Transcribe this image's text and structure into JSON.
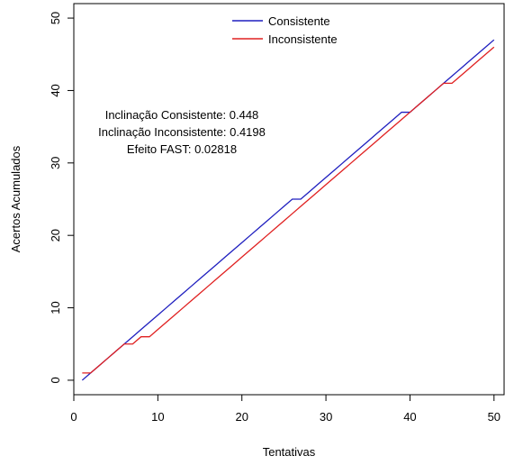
{
  "chart_data": {
    "type": "line",
    "xlabel": "Tentativas",
    "ylabel": "Acertos Acumulados",
    "xlim": [
      0,
      51.2
    ],
    "ylim": [
      -2,
      52
    ],
    "xticks": [
      0,
      10,
      20,
      30,
      40,
      50
    ],
    "yticks": [
      0,
      10,
      20,
      30,
      40,
      50
    ],
    "grid": false,
    "legend_position": "top-center",
    "series": [
      {
        "name": "Consistente",
        "color": "#1f1fbf",
        "x": [
          1,
          2,
          3,
          4,
          5,
          6,
          7,
          8,
          9,
          10,
          11,
          12,
          13,
          14,
          15,
          16,
          17,
          18,
          19,
          20,
          21,
          22,
          23,
          24,
          25,
          26,
          27,
          28,
          29,
          30,
          31,
          32,
          33,
          34,
          35,
          36,
          37,
          38,
          39,
          40,
          41,
          42,
          43,
          44,
          45,
          46,
          47,
          48,
          49,
          50
        ],
        "y": [
          0,
          1,
          2,
          3,
          4,
          5,
          6,
          7,
          8,
          9,
          10,
          11,
          12,
          13,
          14,
          15,
          16,
          17,
          18,
          19,
          20,
          21,
          22,
          23,
          24,
          25,
          25,
          26,
          27,
          28,
          29,
          30,
          31,
          32,
          33,
          34,
          35,
          36,
          37,
          37,
          38,
          39,
          40,
          41,
          42,
          43,
          44,
          45,
          46,
          47
        ]
      },
      {
        "name": "Inconsistente",
        "color": "#e02020",
        "x": [
          1,
          2,
          3,
          4,
          5,
          6,
          7,
          8,
          9,
          10,
          11,
          12,
          13,
          14,
          15,
          16,
          17,
          18,
          19,
          20,
          21,
          22,
          23,
          24,
          25,
          26,
          27,
          28,
          29,
          30,
          31,
          32,
          33,
          34,
          35,
          36,
          37,
          38,
          39,
          40,
          41,
          42,
          43,
          44,
          45,
          46,
          47,
          48,
          49,
          50
        ],
        "y": [
          1,
          1,
          2,
          3,
          4,
          5,
          5,
          6,
          6,
          7,
          8,
          9,
          10,
          11,
          12,
          13,
          14,
          15,
          16,
          17,
          18,
          19,
          20,
          21,
          22,
          23,
          24,
          25,
          26,
          27,
          28,
          29,
          30,
          31,
          32,
          33,
          34,
          35,
          36,
          37,
          38,
          39,
          40,
          41,
          41,
          42,
          43,
          44,
          45,
          46
        ]
      }
    ],
    "annotations": [
      "Inclinação Consistente:  0.448",
      "Inclinação Inconsistente:  0.4198",
      "Efeito FAST:  0.02818"
    ]
  }
}
